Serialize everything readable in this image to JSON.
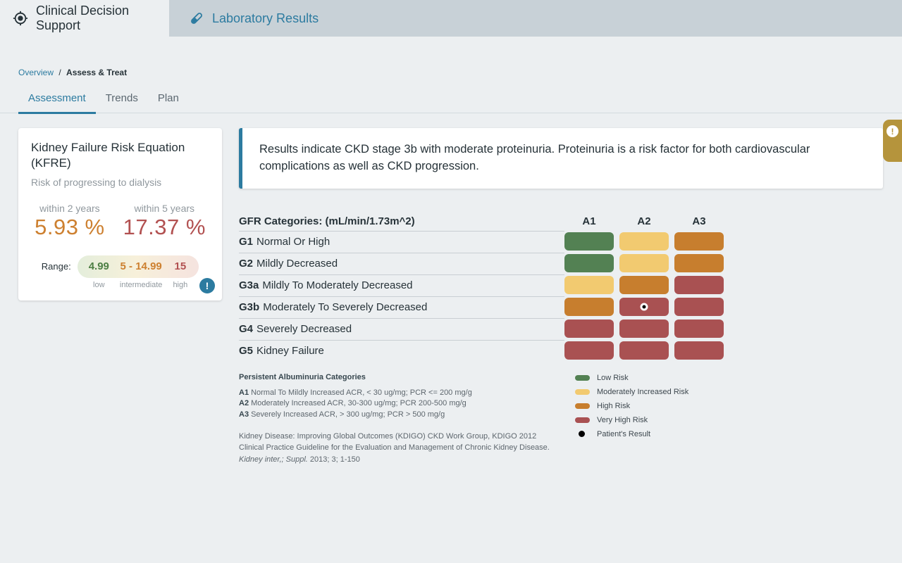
{
  "header": {
    "tabs": [
      {
        "label": "Clinical Decision Support",
        "icon": "target-icon",
        "active": true
      },
      {
        "label": "Laboratory Results",
        "icon": "test-tube-icon",
        "active": false
      }
    ]
  },
  "breadcrumb": {
    "link": "Overview",
    "separator": "/",
    "current": "Assess & Treat"
  },
  "nav_tabs": [
    {
      "label": "Assessment",
      "active": true
    },
    {
      "label": "Trends",
      "active": false
    },
    {
      "label": "Plan",
      "active": false
    }
  ],
  "kfre_card": {
    "title": "Kidney Failure Risk Equation (KFRE)",
    "subtitle": "Risk of progressing to dialysis",
    "risks": [
      {
        "label": "within 2 years",
        "value": "5.93 %",
        "color_key": "orange_text"
      },
      {
        "label": "within 5 years",
        "value": "17.37 %",
        "color_key": "red_text"
      }
    ],
    "range": {
      "label": "Range:",
      "segments": [
        {
          "value": "4.99",
          "caption": "low",
          "color_key": "green_text"
        },
        {
          "value": "5 - 14.99",
          "caption": "intermediate",
          "color_key": "orange_text"
        },
        {
          "value": "15",
          "caption": "high",
          "color_key": "red_text"
        }
      ]
    },
    "info_icon": "!"
  },
  "alert": {
    "message": "Results indicate CKD stage 3b with moderate proteinuria. Proteinuria is a risk factor for both cardiovascular complications as well as CKD progression.",
    "side_tab_icon": "!"
  },
  "matrix": {
    "title": "GFR Categories: (mL/min/1.73m^2)",
    "columns": [
      "A1",
      "A2",
      "A3"
    ],
    "rows": [
      {
        "code": "G1",
        "label": "Normal Or High",
        "cells": [
          "low",
          "moderately_increased",
          "high"
        ]
      },
      {
        "code": "G2",
        "label": "Mildly Decreased",
        "cells": [
          "low",
          "moderately_increased",
          "high"
        ]
      },
      {
        "code": "G3a",
        "label": "Mildly To Moderately Decreased",
        "cells": [
          "moderately_increased",
          "high",
          "very_high"
        ]
      },
      {
        "code": "G3b",
        "label": "Moderately To Severely Decreased",
        "cells": [
          "high",
          "very_high",
          "very_high"
        ]
      },
      {
        "code": "G4",
        "label": "Severely Decreased",
        "cells": [
          "very_high",
          "very_high",
          "very_high"
        ]
      },
      {
        "code": "G5",
        "label": "Kidney Failure",
        "cells": [
          "very_high",
          "very_high",
          "very_high"
        ]
      }
    ],
    "patient": {
      "row": "G3b",
      "col": "A2",
      "row_index": 3,
      "col_index": 1
    }
  },
  "legend": {
    "items": [
      {
        "label": "Low Risk",
        "color_key": "low",
        "shape": "pill"
      },
      {
        "label": "Moderately Increased Risk",
        "color_key": "moderately_increased",
        "shape": "pill"
      },
      {
        "label": "High Risk",
        "color_key": "high",
        "shape": "pill"
      },
      {
        "label": "Very High Risk",
        "color_key": "very_high",
        "shape": "pill"
      },
      {
        "label": "Patient's Result",
        "color_key": "patient_dot",
        "shape": "dot"
      }
    ]
  },
  "footnotes": {
    "albuminuria_title": "Persistent Albuminuria Categories",
    "items": [
      {
        "code": "A1",
        "text": "Normal To Mildly Increased ACR, < 30 ug/mg; PCR <= 200 mg/g"
      },
      {
        "code": "A2",
        "text": "Moderately Increased ACR, 30-300 ug/mg; PCR 200-500 mg/g"
      },
      {
        "code": "A3",
        "text": "Severely Increased ACR, > 300 ug/mg; PCR > 500 mg/g"
      }
    ],
    "citation": {
      "part1": "Kidney Disease: Improving Global Outcomes (KDIGO) CKD Work Group, KDIGO 2012 Clinical Practice Guideline for the Evaluation and Management of Chronic Kidney Disease. ",
      "italic": "Kidney inter,; Suppl.",
      "part2": " 2013; 3; 1-150"
    }
  },
  "colors": {
    "low": "#538153",
    "moderately_increased": "#f2ca70",
    "high": "#c77e2e",
    "very_high": "#a95152",
    "green_text": "#4d7f44",
    "orange_text": "#cd8030",
    "red_text": "#b25151",
    "accent_teal": "#2c7ba0",
    "alert_gold": "#b5943c",
    "patient_dot": "#000000"
  }
}
